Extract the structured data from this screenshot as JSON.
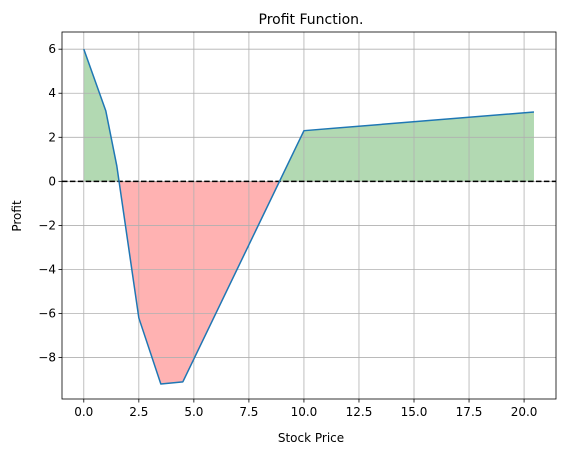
{
  "chart_data": {
    "type": "line",
    "title": "Profit Function.",
    "xlabel": "Stock Price",
    "ylabel": "Profit",
    "xlim": [
      -0.99,
      21.45
    ],
    "ylim": [
      -9.88,
      6.78
    ],
    "xticks": [
      0,
      2.5,
      5,
      7.5,
      10,
      12.5,
      15,
      17.5,
      20
    ],
    "xtick_labels": [
      "0.0",
      "2.5",
      "5.0",
      "7.5",
      "10.0",
      "12.5",
      "15.0",
      "17.5",
      "20.0"
    ],
    "yticks": [
      6,
      4,
      2,
      0,
      -2,
      -4,
      -6,
      -8
    ],
    "ytick_labels": [
      "6",
      "4",
      "2",
      "0",
      "−2",
      "−4",
      "−6",
      "−8"
    ],
    "grid": true,
    "reference_line": {
      "y": 0,
      "style": "dashed",
      "color": "#000000"
    },
    "series": [
      {
        "x": [
          0,
          1,
          1.5,
          2.5,
          3.5,
          4.5,
          10,
          20.45
        ],
        "y": [
          6.0,
          3.2,
          0.7,
          -6.2,
          -9.2,
          -9.1,
          2.3,
          3.15
        ],
        "color": "#1f77b4"
      }
    ],
    "fill_positive_color": "#b2d9b2",
    "fill_negative_color": "#ffb2b2"
  }
}
